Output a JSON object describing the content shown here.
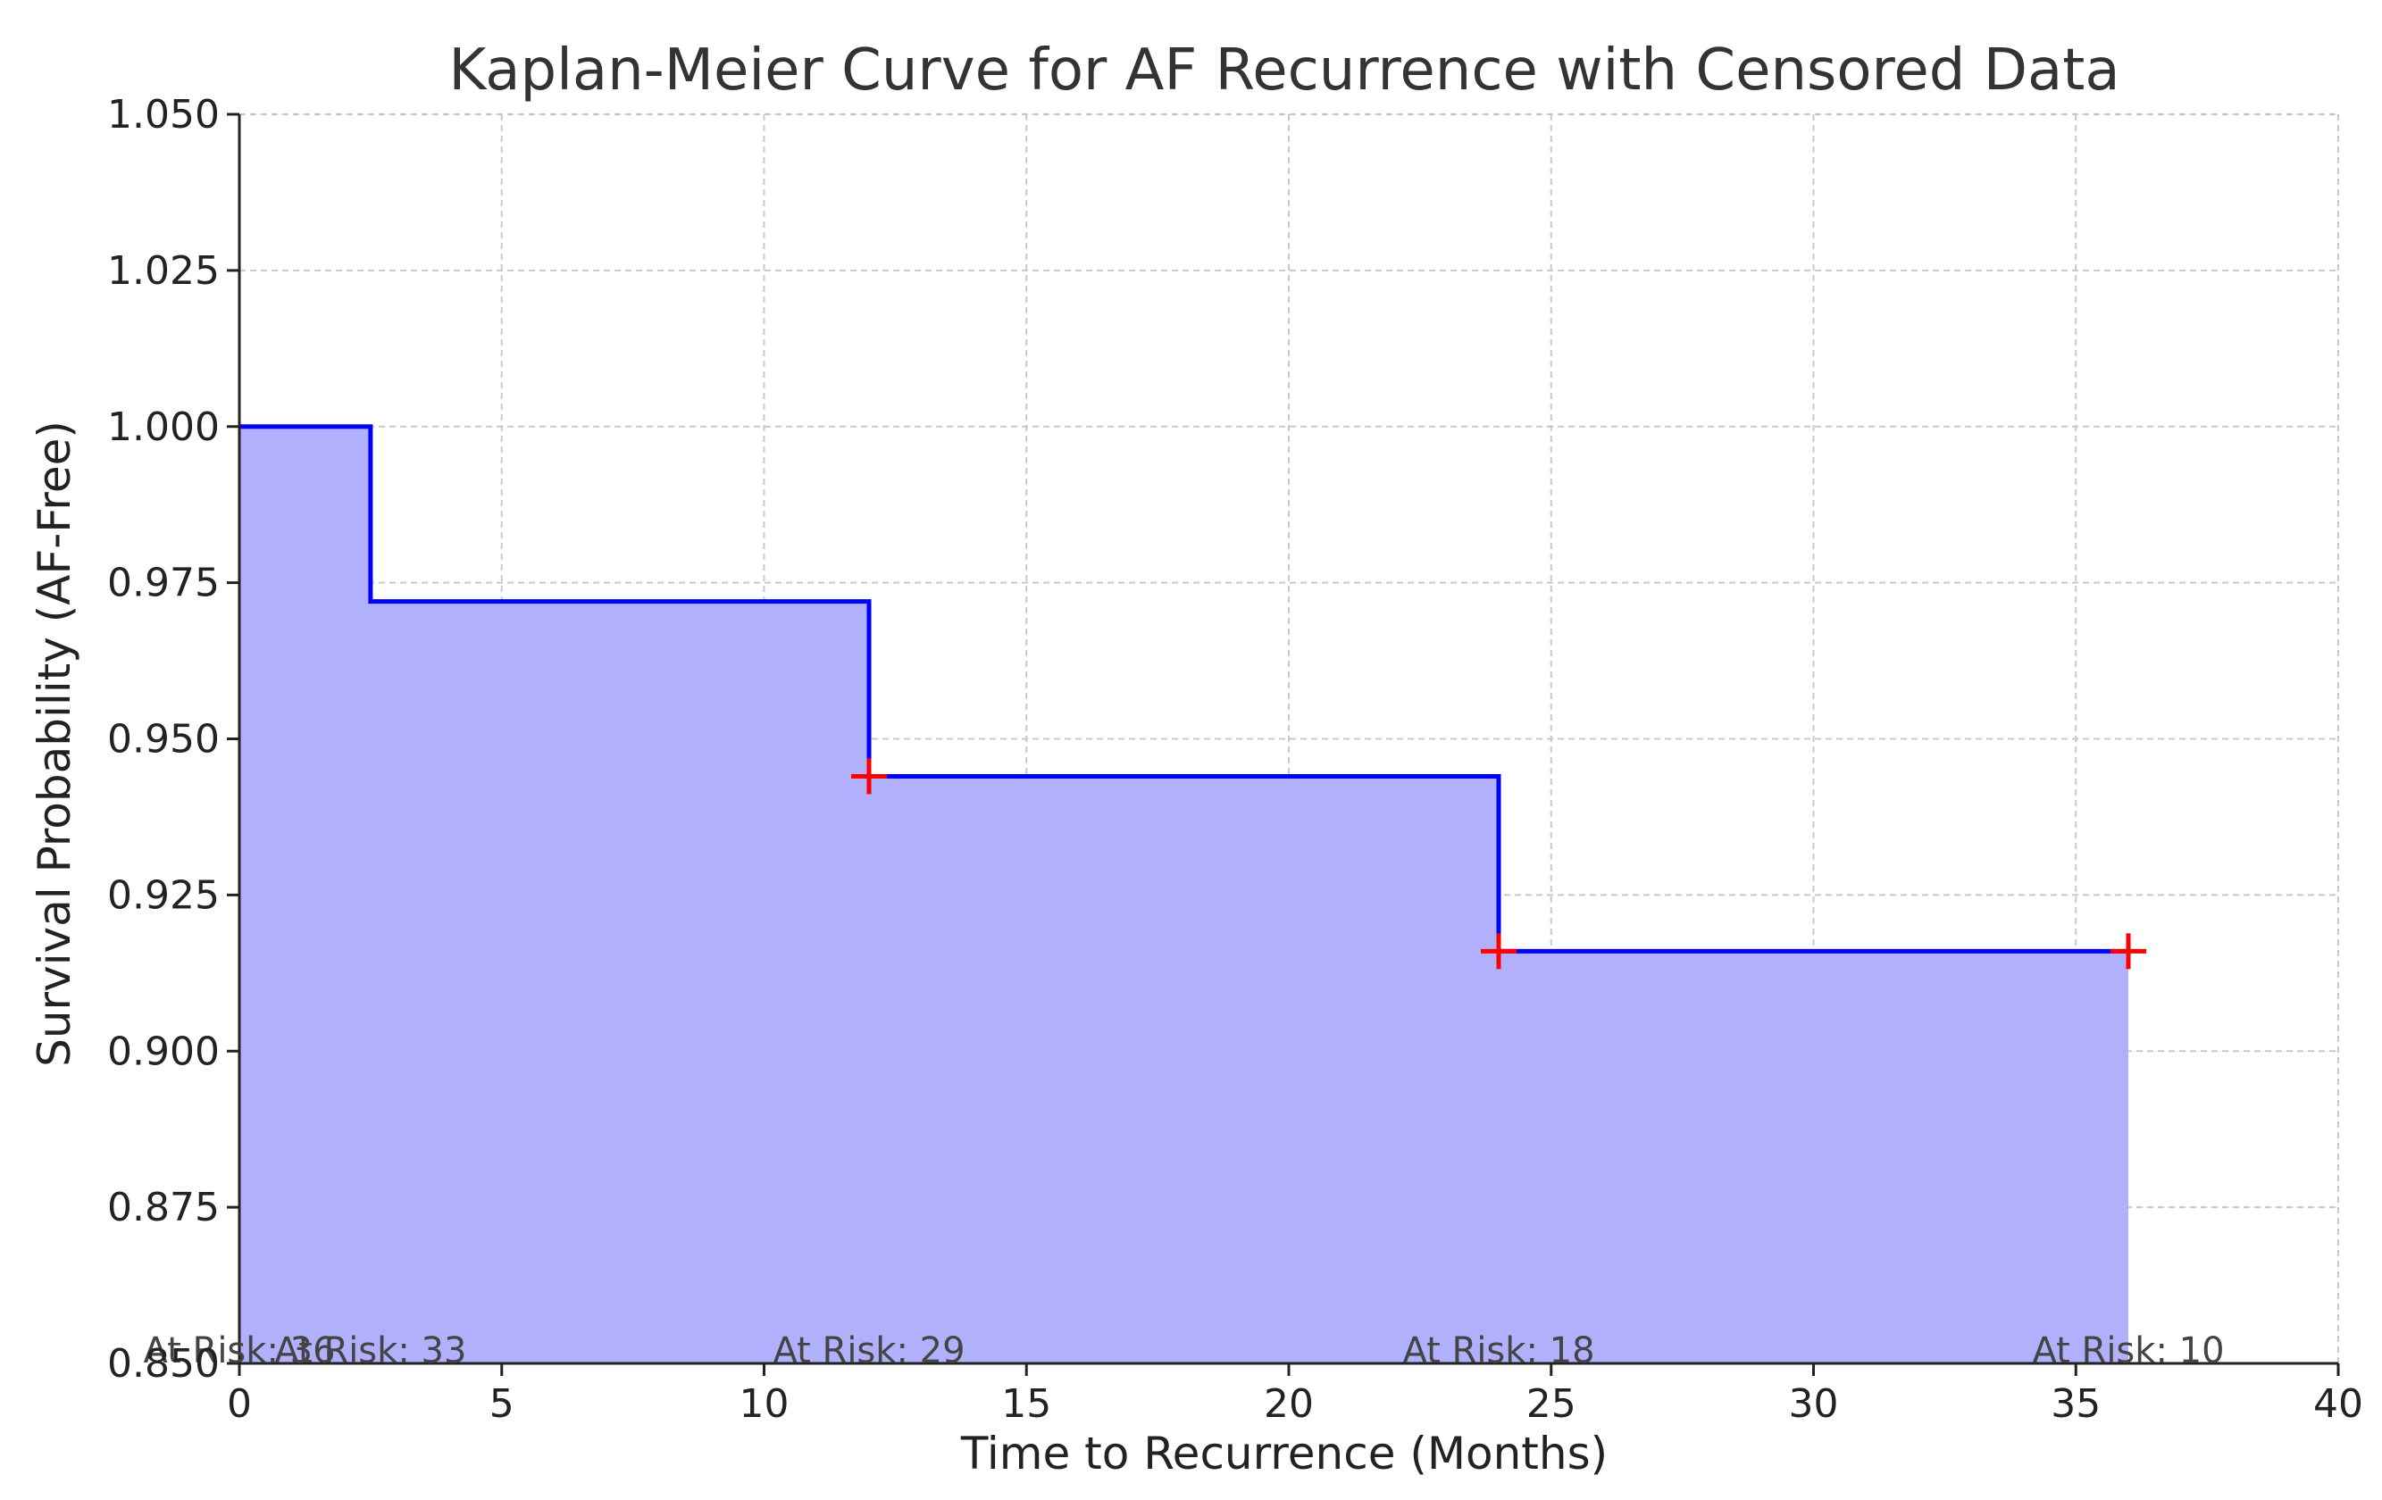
{
  "chart_data": {
    "type": "line",
    "title": "Kaplan-Meier Curve for AF Recurrence with Censored Data",
    "xlabel": "Time to Recurrence (Months)",
    "ylabel": "Survival Probability (AF-Free)",
    "xlim": [
      0,
      40
    ],
    "ylim": [
      0.85,
      1.05
    ],
    "xticks": [
      "0",
      "5",
      "10",
      "15",
      "20",
      "25",
      "30",
      "35",
      "40"
    ],
    "yticks": [
      "0.850",
      "0.875",
      "0.900",
      "0.925",
      "0.950",
      "0.975",
      "1.000",
      "1.025",
      "1.050"
    ],
    "grid": true,
    "step_curve": {
      "x": [
        0,
        2.5,
        12,
        24,
        36
      ],
      "y": [
        1.0,
        0.972,
        0.944,
        0.916,
        0.916
      ],
      "color": "#0000ff",
      "fill_color": "#b0b0fc"
    },
    "censored": {
      "x": [
        12,
        24,
        36
      ],
      "y": [
        0.944,
        0.916,
        0.916
      ],
      "color": "#ff0000"
    },
    "at_risk": [
      {
        "x": 0,
        "label": "At Risk: 36"
      },
      {
        "x": 2.5,
        "label": "At Risk: 33"
      },
      {
        "x": 12,
        "label": "At Risk: 29"
      },
      {
        "x": 24,
        "label": "At Risk: 18"
      },
      {
        "x": 36,
        "label": "At Risk: 10"
      }
    ]
  }
}
